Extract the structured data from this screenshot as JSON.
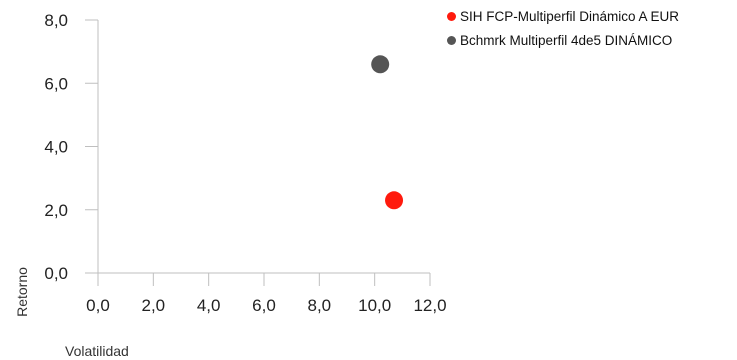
{
  "chart_data": {
    "type": "scatter",
    "title": "",
    "xlabel": "Volatilidad",
    "ylabel": "Retorno",
    "xlim": [
      0,
      12
    ],
    "ylim": [
      0,
      8
    ],
    "x_ticks": [
      "0,0",
      "2,0",
      "4,0",
      "6,0",
      "8,0",
      "10,0",
      "12,0"
    ],
    "y_ticks": [
      "0,0",
      "2,0",
      "4,0",
      "6,0",
      "8,0"
    ],
    "grid": false,
    "legend_position": "top-right",
    "series": [
      {
        "name": "SIH FCP-Multiperfil Dinámico A EUR",
        "color": "#ff1a0d",
        "points": [
          {
            "x": 10.7,
            "y": 2.3
          }
        ]
      },
      {
        "name": "Bchmrk Multiperfil 4de5 DINÁMICO",
        "color": "#555555",
        "points": [
          {
            "x": 10.2,
            "y": 6.6
          }
        ]
      }
    ]
  }
}
